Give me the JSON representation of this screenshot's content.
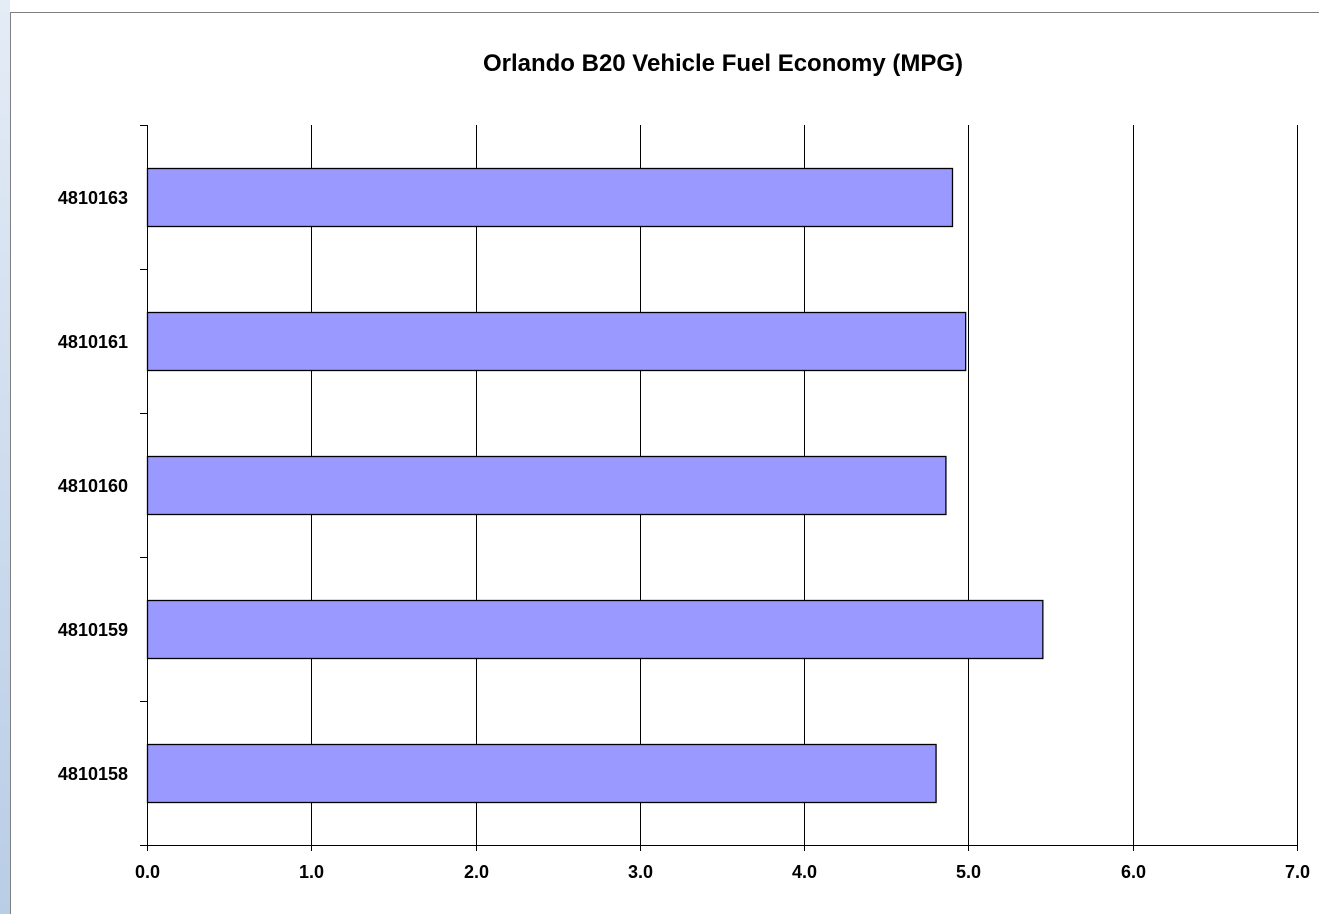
{
  "chart_data": {
    "type": "bar",
    "orientation": "horizontal",
    "title": "Orlando B20 Vehicle Fuel Economy (MPG)",
    "xlabel": "",
    "ylabel": "",
    "categories": [
      "4810163",
      "4810161",
      "4810160",
      "4810159",
      "4810158"
    ],
    "values": [
      4.9,
      4.98,
      4.86,
      5.45,
      4.8
    ],
    "xlim": [
      0,
      7
    ],
    "xticks": [
      "0.0",
      "1.0",
      "2.0",
      "3.0",
      "4.0",
      "5.0",
      "6.0",
      "7.0"
    ],
    "grid": "vertical",
    "legend": "none",
    "colors": {
      "bar_fill": "#9999ff",
      "bar_stroke": "#000000",
      "grid": "#000000"
    }
  }
}
